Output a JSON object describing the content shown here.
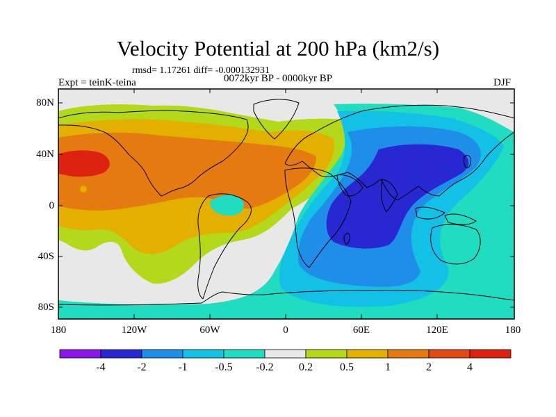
{
  "title": "Velocity Potential at 200 hPa (km2/s)",
  "stats_line": "rmsd= 1.17261 diff= -0.000132931",
  "left_label": "Expt = teinK-teina",
  "center_label": "0072kyr BP - 0000kyr BP",
  "right_label": "DJF",
  "map_data": {
    "projection": "cylindrical equidistant",
    "lon_range": [
      -180,
      180
    ],
    "lat_range": [
      -90,
      90
    ],
    "lat_ticks": [
      "80N",
      "40N",
      "0",
      "40S",
      "80S"
    ],
    "lon_ticks": [
      "180",
      "120W",
      "60W",
      "0",
      "60E",
      "120E",
      "180"
    ],
    "centers": [
      {
        "feature": "positive maximum",
        "region": "North Pacific",
        "level": ">4"
      },
      {
        "feature": "negative minimum",
        "region": "Arabian Sea / Indian Ocean",
        "level": "<-2"
      }
    ]
  },
  "colorbar": {
    "labels": [
      "-4",
      "-2",
      "-1",
      "-0.5",
      "-0.2",
      "0.2",
      "0.5",
      "1",
      "2",
      "4"
    ],
    "colors": [
      "#8a17e6",
      "#2828d2",
      "#1e8ee8",
      "#14c1e6",
      "#20dcc0",
      "#e8e8e8",
      "#b4d81a",
      "#e4b000",
      "#e47a10",
      "#e24a14",
      "#dd2210"
    ]
  },
  "field_colors": {
    "neutral": "#e8e8e8",
    "pos_0_2": "#b4d81a",
    "pos_0_5": "#e4b000",
    "pos_1": "#e47a10",
    "pos_4": "#dd2210",
    "neg_0_2": "#20dcc0",
    "neg_0_5": "#14c1e6",
    "neg_1": "#1e8ee8",
    "neg_2": "#2828d2"
  }
}
